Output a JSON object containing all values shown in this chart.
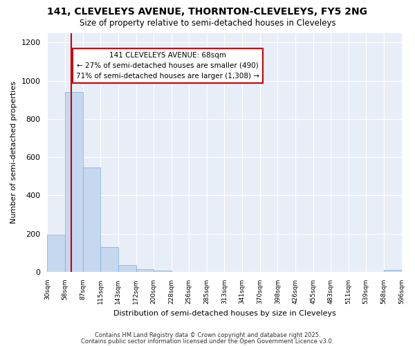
{
  "title1": "141, CLEVELEYS AVENUE, THORNTON-CLEVELEYS, FY5 2NG",
  "title2": "Size of property relative to semi-detached houses in Cleveleys",
  "xlabel": "Distribution of semi-detached houses by size in Cleveleys",
  "ylabel": "Number of semi-detached properties",
  "bar_color": "#c5d8f0",
  "bar_edge_color": "#7aafd4",
  "background_color": "#ffffff",
  "plot_bg_color": "#e8eef8",
  "grid_color": "#ffffff",
  "bins": [
    30,
    58,
    87,
    115,
    143,
    172,
    200,
    228,
    256,
    285,
    313,
    341,
    370,
    398,
    426,
    455,
    483,
    511,
    539,
    568,
    596
  ],
  "values": [
    195,
    940,
    545,
    130,
    35,
    15,
    8,
    0,
    0,
    0,
    0,
    0,
    0,
    0,
    0,
    0,
    0,
    0,
    0,
    10
  ],
  "property_size": 68,
  "red_line_color": "#cc0000",
  "annotation_line1": "141 CLEVELEYS AVENUE: 68sqm",
  "annotation_line2": "← 27% of semi-detached houses are smaller (490)",
  "annotation_line3": "71% of semi-detached houses are larger (1,308) →",
  "annotation_box_color": "#ffffff",
  "annotation_border_color": "#cc0000",
  "ylim": [
    0,
    1250
  ],
  "yticks": [
    0,
    200,
    400,
    600,
    800,
    1000,
    1200
  ],
  "footnote1": "Contains HM Land Registry data © Crown copyright and database right 2025.",
  "footnote2": "Contains public sector information licensed under the Open Government Licence v3.0."
}
